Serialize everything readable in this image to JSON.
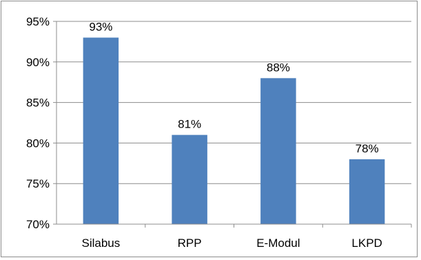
{
  "chart_data": {
    "type": "bar",
    "categories": [
      "Silabus",
      "RPP",
      "E-Modul",
      "LKPD"
    ],
    "values": [
      93,
      81,
      88,
      78
    ],
    "value_labels": [
      "93%",
      "81%",
      "88%",
      "78%"
    ],
    "ylim": [
      70,
      95
    ],
    "yticks": [
      70,
      75,
      80,
      85,
      90,
      95
    ],
    "ytick_labels": [
      "70%",
      "75%",
      "80%",
      "85%",
      "90%",
      "95%"
    ],
    "title": "",
    "xlabel": "",
    "ylabel": "",
    "grid": true,
    "legend": false,
    "bar_color": "#4f81bd",
    "grid_color": "#8c8c8c",
    "axis_color": "#8c8c8c"
  }
}
